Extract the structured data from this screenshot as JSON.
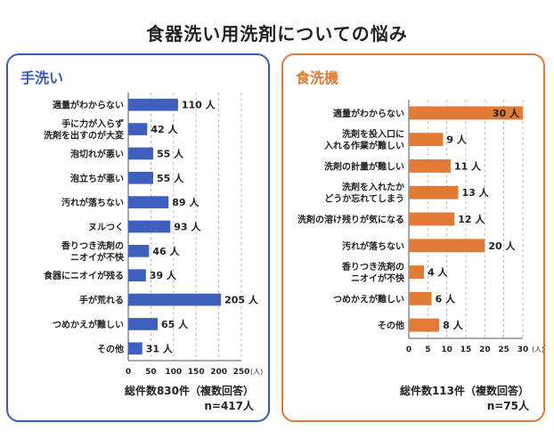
{
  "title": "食器洗い用洗剤についての悩み",
  "colors": {
    "left": "#3a5bb4",
    "right": "#e07a35"
  },
  "chart_data": [
    {
      "type": "bar",
      "orientation": "horizontal",
      "panel_title": "手洗い",
      "color": "#3f5fbf",
      "categories": [
        [
          "適量がわからない"
        ],
        [
          "手に力が入らず",
          "洗剤を出すのが大変"
        ],
        [
          "泡切れが悪い"
        ],
        [
          "泡立ちが悪い"
        ],
        [
          "汚れが落ちない"
        ],
        [
          "ヌルつく"
        ],
        [
          "香りつき洗剤の",
          "ニオイが不快"
        ],
        [
          "食器にニオイが残る"
        ],
        [
          "手が荒れる"
        ],
        [
          "つめかえが難しい"
        ],
        [
          "その他"
        ]
      ],
      "values": [
        110,
        42,
        55,
        55,
        89,
        93,
        46,
        39,
        205,
        65,
        31
      ],
      "value_suffix": " 人",
      "xlim": [
        0,
        250
      ],
      "xticks": [
        0,
        50,
        100,
        150,
        200,
        250
      ],
      "xunit": "(人)",
      "grid": true,
      "total_text": "総件数830件（複数回答）",
      "n_text": "n=417人"
    },
    {
      "type": "bar",
      "orientation": "horizontal",
      "panel_title": "食洗機",
      "color": "#e07a35",
      "categories": [
        [
          "適量がわからない"
        ],
        [
          "洗剤を投入口に",
          "入れる作業が難しい"
        ],
        [
          "洗剤の計量が難しい"
        ],
        [
          "洗剤を入れたか",
          "どうか忘れてしまう"
        ],
        [
          "洗剤の溶け残りが気になる"
        ],
        [
          "汚れが落ちない"
        ],
        [
          "香りつき洗剤の",
          "ニオイが不快"
        ],
        [
          "つめかえが難しい"
        ],
        [
          "その他"
        ]
      ],
      "values": [
        30,
        9,
        11,
        13,
        12,
        20,
        4,
        6,
        8
      ],
      "value_suffix": " 人",
      "xlim": [
        0,
        30
      ],
      "xticks": [
        0,
        5,
        10,
        15,
        20,
        25,
        30
      ],
      "xunit": "30 (人)",
      "grid": true,
      "total_text": "総件数113件（複数回答）",
      "n_text": "n=75人"
    }
  ]
}
